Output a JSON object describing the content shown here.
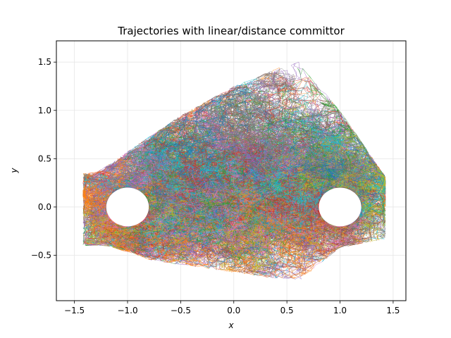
{
  "chart_data": {
    "type": "line",
    "title": "Trajectories with linear/distance committor",
    "xlabel": "x",
    "ylabel": "y",
    "xlim": [
      -1.67,
      1.62
    ],
    "ylim": [
      -0.97,
      1.72
    ],
    "xticks": [
      -1.5,
      -1.0,
      -0.5,
      0.0,
      0.5,
      1.0,
      1.5
    ],
    "xtick_labels": [
      "−1.5",
      "−1.0",
      "−0.5",
      "0.0",
      "0.5",
      "1.0",
      "1.5"
    ],
    "yticks": [
      -0.5,
      0.0,
      0.5,
      1.0,
      1.5
    ],
    "ytick_labels": [
      "−0.5",
      "0.0",
      "0.5",
      "1.0",
      "1.5"
    ],
    "grid": true,
    "legend": "none",
    "states": [
      {
        "center": [
          -1.0,
          0.0
        ],
        "radius": 0.2
      },
      {
        "center": [
          1.0,
          0.0
        ],
        "radius": 0.2
      }
    ],
    "trajectory_region": {
      "x_range": [
        -1.45,
        1.45
      ],
      "y_range": [
        -0.8,
        1.55
      ]
    },
    "colors": [
      "#1f77b4",
      "#ff7f0e",
      "#2ca02c",
      "#d62728",
      "#9467bd",
      "#8c564b",
      "#e377c2",
      "#7f7f7f",
      "#bcbd22",
      "#17becf"
    ]
  }
}
